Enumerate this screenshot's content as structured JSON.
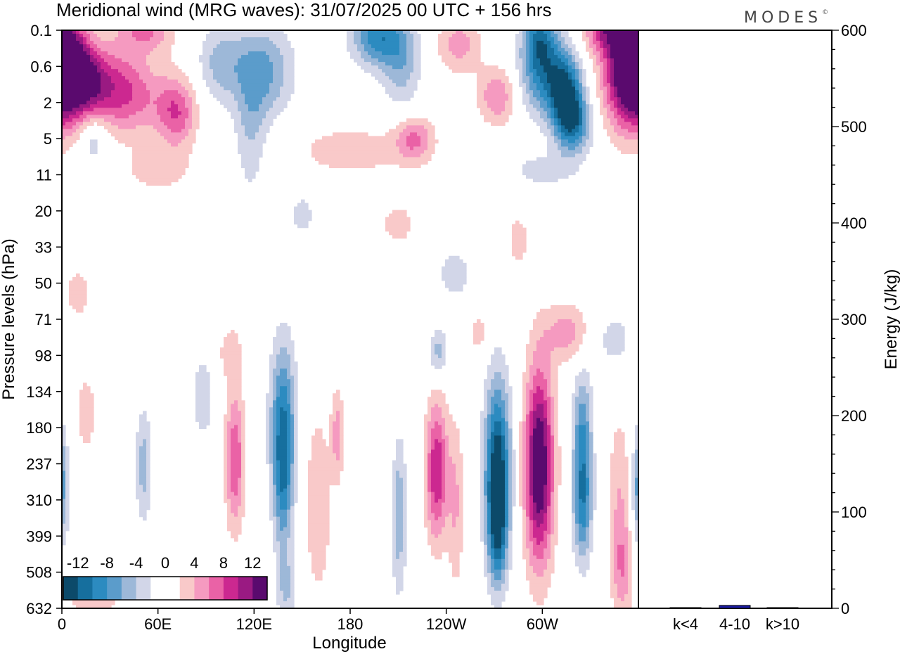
{
  "chart_data": {
    "type": "heatmap",
    "title": "Meridional wind (MRG waves):  31/07/2025  00 UTC  + 156 hrs",
    "brand": "MODES",
    "brand_mark": "©",
    "xlabel": "Longitude",
    "ylabel": "Pressure levels (hPa)",
    "x_ticks": [
      "0",
      "60E",
      "120E",
      "180",
      "120W",
      "60W"
    ],
    "y_levels": [
      "0.1",
      "0.6",
      "2",
      "5",
      "11",
      "20",
      "33",
      "50",
      "71",
      "98",
      "134",
      "180",
      "237",
      "310",
      "399",
      "508",
      "632"
    ],
    "colorbar": {
      "tick_labels": [
        "-12",
        "-8",
        "-4",
        "0",
        "4",
        "8",
        "12"
      ],
      "colors": [
        "#0c4a6a",
        "#166f9e",
        "#2c8bc0",
        "#5b9ccb",
        "#9db8d8",
        "#d2d6e8",
        "#ffffff",
        "#ffffff",
        "#f9c9c9",
        "#f59ac0",
        "#ea62a6",
        "#cc2890",
        "#9a1a82",
        "#5a0a6e"
      ]
    },
    "blobs": [
      {
        "lon": 3,
        "p": 0.6,
        "w": 14,
        "h": 0.08,
        "v": 11
      },
      {
        "lon": 16,
        "p": 1.0,
        "w": 14,
        "h": 0.06,
        "v": 8
      },
      {
        "lon": 34,
        "p": 1.2,
        "w": 18,
        "h": 0.07,
        "v": 6
      },
      {
        "lon": 50,
        "p": 1.8,
        "w": 22,
        "h": 0.07,
        "v": 4
      },
      {
        "lon": 72,
        "p": 2.6,
        "w": 12,
        "h": 0.06,
        "v": 7
      },
      {
        "lon": 52,
        "p": 0.1,
        "w": 18,
        "h": 0.04,
        "v": 6
      },
      {
        "lon": 100,
        "p": 0.5,
        "w": 15,
        "h": 0.07,
        "v": -5
      },
      {
        "lon": 128,
        "p": 0.7,
        "w": 17,
        "h": 0.08,
        "v": -6
      },
      {
        "lon": 118,
        "p": 3.5,
        "w": 10,
        "h": 0.12,
        "v": -4
      },
      {
        "lon": 197,
        "p": 0.14,
        "w": 16,
        "h": 0.05,
        "v": -9
      },
      {
        "lon": 212,
        "p": 0.5,
        "w": 12,
        "h": 0.08,
        "v": -5
      },
      {
        "lon": 248,
        "p": 0.2,
        "w": 14,
        "h": 0.05,
        "v": 5
      },
      {
        "lon": 272,
        "p": 1.6,
        "w": 12,
        "h": 0.05,
        "v": 6
      },
      {
        "lon": 298,
        "p": 0.15,
        "w": 10,
        "h": 0.05,
        "v": -8
      },
      {
        "lon": 302,
        "p": 0.8,
        "w": 16,
        "h": 0.07,
        "v": -9
      },
      {
        "lon": 315,
        "p": 2.0,
        "w": 10,
        "h": 0.07,
        "v": -12
      },
      {
        "lon": 322,
        "p": 3.6,
        "w": 10,
        "h": 0.05,
        "v": -6
      },
      {
        "lon": 354,
        "p": 0.7,
        "w": 16,
        "h": 0.1,
        "v": 14
      },
      {
        "lon": 340,
        "p": 0.1,
        "w": 14,
        "h": 0.04,
        "v": 8
      },
      {
        "lon": 180,
        "p": 6.5,
        "w": 40,
        "h": 0.05,
        "v": 3
      },
      {
        "lon": 220,
        "p": 5.0,
        "w": 12,
        "h": 0.04,
        "v": 6
      },
      {
        "lon": 60,
        "p": 10.0,
        "w": 22,
        "h": 0.04,
        "v": 3
      },
      {
        "lon": 20,
        "p": 5.0,
        "w": 8,
        "h": 0.04,
        "v": -4
      },
      {
        "lon": 300,
        "p": 10.0,
        "w": 20,
        "h": 0.03,
        "v": -3
      },
      {
        "lon": 150,
        "p": 21.0,
        "w": 8,
        "h": 0.04,
        "v": -3
      },
      {
        "lon": 210,
        "p": 24.0,
        "w": 12,
        "h": 0.04,
        "v": 3
      },
      {
        "lon": 285,
        "p": 30.0,
        "w": 8,
        "h": 0.05,
        "v": 3
      },
      {
        "lon": 245,
        "p": 45.0,
        "w": 12,
        "h": 0.05,
        "v": -3
      },
      {
        "lon": 315,
        "p": 80.0,
        "w": 14,
        "h": 0.05,
        "v": 5
      },
      {
        "lon": 235,
        "p": 95.0,
        "w": 6,
        "h": 0.04,
        "v": -5
      },
      {
        "lon": 260,
        "p": 80.0,
        "w": 6,
        "h": 0.04,
        "v": 3
      },
      {
        "lon": 105,
        "p": 95.0,
        "w": 8,
        "h": 0.05,
        "v": 3
      },
      {
        "lon": 345,
        "p": 85.0,
        "w": 12,
        "h": 0.05,
        "v": -3
      },
      {
        "lon": 15,
        "p": 160.0,
        "w": 8,
        "h": 0.08,
        "v": 3
      },
      {
        "lon": 51,
        "p": 240.0,
        "w": 5,
        "h": 0.1,
        "v": -5
      },
      {
        "lon": 88,
        "p": 140.0,
        "w": 6,
        "h": 0.07,
        "v": -4
      },
      {
        "lon": 108,
        "p": 230.0,
        "w": 6,
        "h": 0.12,
        "v": 8
      },
      {
        "lon": 138,
        "p": 170.0,
        "w": 8,
        "h": 0.14,
        "v": -9
      },
      {
        "lon": 138,
        "p": 290.0,
        "w": 6,
        "h": 0.12,
        "v": -6
      },
      {
        "lon": 160,
        "p": 320.0,
        "w": 8,
        "h": 0.16,
        "v": 4
      },
      {
        "lon": 200,
        "p": 240.0,
        "w": 9,
        "h": 0.22,
        "v": 2
      },
      {
        "lon": 210,
        "p": 340.0,
        "w": 5,
        "h": 0.14,
        "v": -6
      },
      {
        "lon": 234,
        "p": 250.0,
        "w": 7,
        "h": 0.12,
        "v": 10
      },
      {
        "lon": 246,
        "p": 320.0,
        "w": 5,
        "h": 0.15,
        "v": 4
      },
      {
        "lon": 272,
        "p": 240.0,
        "w": 8,
        "h": 0.15,
        "v": -13
      },
      {
        "lon": 272,
        "p": 380.0,
        "w": 6,
        "h": 0.1,
        "v": -8
      },
      {
        "lon": 298,
        "p": 240.0,
        "w": 9,
        "h": 0.17,
        "v": 15
      },
      {
        "lon": 325,
        "p": 180.0,
        "w": 6,
        "h": 0.1,
        "v": -7
      },
      {
        "lon": 325,
        "p": 320.0,
        "w": 6,
        "h": 0.1,
        "v": -9
      },
      {
        "lon": 348,
        "p": 320.0,
        "w": 7,
        "h": 0.16,
        "v": 4
      },
      {
        "lon": 360,
        "p": 280.0,
        "w": 4,
        "h": 0.1,
        "v": -7
      },
      {
        "lon": 140,
        "p": 560.0,
        "w": 6,
        "h": 0.06,
        "v": -4
      },
      {
        "lon": 20,
        "p": 600.0,
        "w": 20,
        "h": 0.04,
        "v": 3
      },
      {
        "lon": 10,
        "p": 55.0,
        "w": 10,
        "h": 0.05,
        "v": 3
      },
      {
        "lon": 350,
        "p": 500.0,
        "w": 6,
        "h": 0.08,
        "v": 4
      },
      {
        "lon": 172,
        "p": 190.0,
        "w": 4,
        "h": 0.08,
        "v": 5
      }
    ],
    "side_panel": {
      "type": "bar",
      "ylabel": "Energy (J/kg)",
      "ylim": [
        0,
        600
      ],
      "y_ticks": [
        0,
        100,
        200,
        300,
        400,
        500,
        600
      ],
      "categories": [
        "k<4",
        "4-10",
        "k>10"
      ],
      "values": [
        0,
        3,
        0
      ]
    }
  }
}
